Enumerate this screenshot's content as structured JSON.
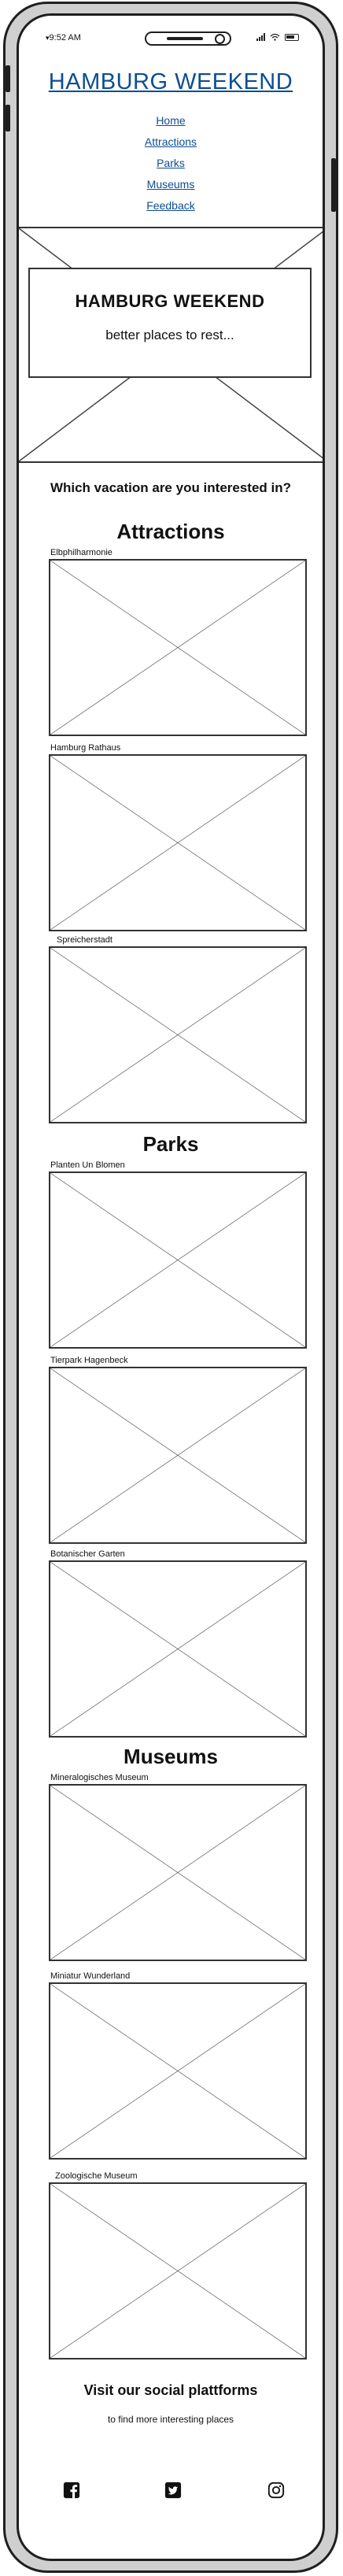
{
  "status_bar": {
    "time": "9:52 AM",
    "signal_prefix": "▾"
  },
  "header": {
    "title": "HAMBURG WEEKEND"
  },
  "nav": {
    "items": [
      "Home",
      "Attractions",
      "Parks",
      "Museums",
      "Feedback"
    ]
  },
  "hero": {
    "title": "HAMBURG WEEKEND",
    "subtitle": "better places to rest..."
  },
  "question": "Which vacation are you interested in?",
  "sections": [
    {
      "title": "Attractions",
      "cards": [
        "Elbphilharmonie",
        "Hamburg Rathaus",
        "Spreicherstadt"
      ]
    },
    {
      "title": "Parks",
      "cards": [
        "Planten Un Blomen",
        "Tierpark Hagenbeck",
        "Botanischer Garten"
      ]
    },
    {
      "title": "Museums",
      "cards": [
        "Mineralogisches Museum",
        "Miniatur Wunderland",
        "Zoologische Museum"
      ]
    }
  ],
  "footer": {
    "title": "Visit our social plattforms",
    "subtitle": "to find more interesting places",
    "social_icons": [
      "facebook-icon",
      "twitter-icon",
      "instagram-icon"
    ]
  }
}
